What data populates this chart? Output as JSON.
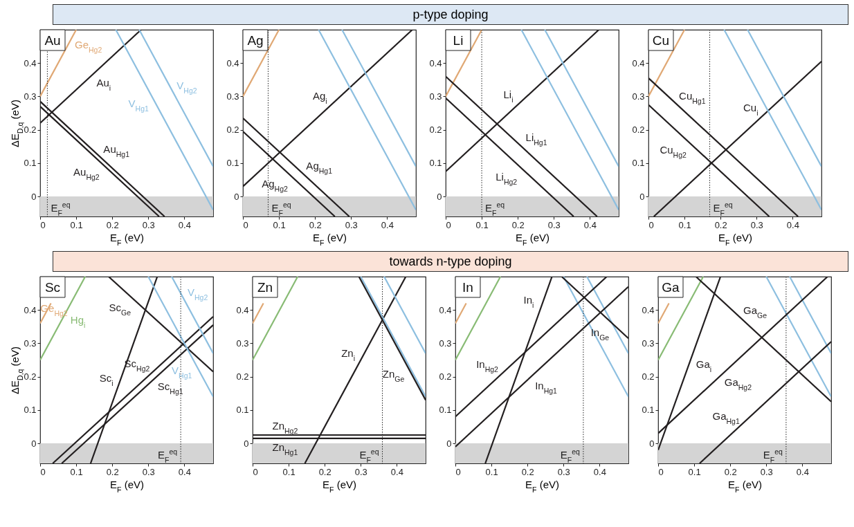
{
  "chart_data": [
    {
      "type": "other",
      "title": "p-type doping",
      "color": "#dde8f4"
    },
    {
      "type": "line",
      "title": "Au",
      "xlabel": "E$_{F}$ (eV)",
      "ylabel": "ΔE$_{D,q}$ (eV)",
      "xlim": [
        0,
        0.48
      ],
      "ylim": [
        -0.06,
        0.5
      ],
      "xticks": [
        0,
        0.1,
        0.2,
        0.3,
        0.4
      ],
      "yticks": [
        0,
        0.1,
        0.2,
        0.3,
        0.4
      ],
      "grid": false,
      "series": [
        {
          "color": "#e0a874",
          "x": [
            0,
            0.1
          ],
          "values": [
            0.3,
            0.5
          ]
        },
        {
          "color": "#231f20",
          "x": [
            0,
            0.28
          ],
          "values": [
            0.22,
            0.5
          ]
        },
        {
          "color": "#231f20",
          "x": [
            0,
            0.345
          ],
          "values": [
            0.285,
            -0.06
          ]
        },
        {
          "color": "#231f20",
          "x": [
            0,
            0.33
          ],
          "values": [
            0.27,
            -0.06
          ]
        },
        {
          "color": "#8dbfe0",
          "x": [
            0.21,
            0.48
          ],
          "values": [
            0.5,
            -0.04
          ]
        },
        {
          "color": "#8dbfe0",
          "x": [
            0.275,
            0.48
          ],
          "values": [
            0.5,
            0.09
          ]
        }
      ],
      "bands": [
        {
          "axis": "y",
          "from": -0.06,
          "to": 0,
          "color": "#d4d4d4"
        }
      ],
      "ref_lines": [
        {
          "axis": "x",
          "value": 0.02,
          "label": "E$_{F}$$^{eq}$",
          "line_style": "dotted"
        }
      ],
      "annotations": [
        {
          "text": "Ge$_{Hg2}$",
          "x": 0.09,
          "y": 0.48
        },
        {
          "text": "Au$_{i}$",
          "x": 0.15,
          "y": 0.37
        },
        {
          "text": "Au$_{Hg1}$",
          "x": 0.18,
          "y": 0.105
        },
        {
          "text": "Au$_{Hg2}$",
          "x": 0.16,
          "y": 0.11
        },
        {
          "text": "V$_{Hg2}$",
          "x": 0.37,
          "y": 0.31
        },
        {
          "text": "V$_{Hg1}$",
          "x": 0.31,
          "y": 0.3
        }
      ]
    },
    {
      "type": "line",
      "title": "Ag",
      "xlabel": "E$_{F}$ (eV)",
      "xlim": [
        0,
        0.48
      ],
      "ylim": [
        -0.06,
        0.5
      ],
      "xticks": [
        0,
        0.1,
        0.2,
        0.3,
        0.4
      ],
      "yticks": [
        0,
        0.1,
        0.2,
        0.3,
        0.4
      ],
      "grid": false,
      "series": [
        {
          "color": "#e0a874",
          "x": [
            0,
            0.1
          ],
          "values": [
            0.3,
            0.5
          ]
        },
        {
          "color": "#231f20",
          "x": [
            0,
            0.47
          ],
          "values": [
            0.03,
            0.5
          ]
        },
        {
          "color": "#231f20",
          "x": [
            0,
            0.295
          ],
          "values": [
            0.235,
            -0.06
          ]
        },
        {
          "color": "#231f20",
          "x": [
            0,
            0.255
          ],
          "values": [
            0.195,
            -0.06
          ]
        },
        {
          "color": "#8dbfe0",
          "x": [
            0.21,
            0.48
          ],
          "values": [
            0.5,
            -0.04
          ]
        },
        {
          "color": "#8dbfe0",
          "x": [
            0.275,
            0.48
          ],
          "values": [
            0.5,
            0.09
          ]
        }
      ],
      "bands": [
        {
          "axis": "y",
          "from": -0.06,
          "to": 0,
          "color": "#d4d4d4"
        }
      ],
      "ref_lines": [
        {
          "axis": "x",
          "value": 0.07,
          "label": "E$_{F}$$^{eq}$",
          "line_style": "dotted"
        }
      ],
      "annotations": [
        {
          "text": "Ag$_{i}$",
          "x": 0.24,
          "y": 0.27
        },
        {
          "text": "Ag$_{Hg1}$",
          "x": 0.18,
          "y": 0.055
        },
        {
          "text": "Ag$_{Hg2}$",
          "x": 0.12,
          "y": 0.075
        }
      ]
    },
    {
      "type": "line",
      "title": "Li",
      "xlabel": "E$_{F}$ (eV)",
      "xlim": [
        0,
        0.48
      ],
      "ylim": [
        -0.06,
        0.5
      ],
      "xticks": [
        0,
        0.1,
        0.2,
        0.3,
        0.4
      ],
      "yticks": [
        0,
        0.1,
        0.2,
        0.3,
        0.4
      ],
      "grid": false,
      "series": [
        {
          "color": "#e0a874",
          "x": [
            0,
            0.1
          ],
          "values": [
            0.3,
            0.5
          ]
        },
        {
          "color": "#231f20",
          "x": [
            0,
            0.425
          ],
          "values": [
            0.075,
            0.5
          ]
        },
        {
          "color": "#231f20",
          "x": [
            0,
            0.42
          ],
          "values": [
            0.36,
            -0.06
          ]
        },
        {
          "color": "#231f20",
          "x": [
            0,
            0.355
          ],
          "values": [
            0.295,
            -0.06
          ]
        },
        {
          "color": "#8dbfe0",
          "x": [
            0.21,
            0.48
          ],
          "values": [
            0.5,
            -0.04
          ]
        },
        {
          "color": "#8dbfe0",
          "x": [
            0.275,
            0.48
          ],
          "values": [
            0.5,
            0.09
          ]
        }
      ],
      "bands": [
        {
          "axis": "y",
          "from": -0.06,
          "to": 0,
          "color": "#d4d4d4"
        }
      ],
      "ref_lines": [
        {
          "axis": "x",
          "value": 0.1,
          "label": "E$_{F}$$^{eq}$",
          "line_style": "dotted"
        }
      ],
      "annotations": [
        {
          "text": "Li$_{i}$",
          "x": 0.2,
          "y": 0.275
        },
        {
          "text": "Li$_{Hg1}$",
          "x": 0.22,
          "y": 0.14
        },
        {
          "text": "Li$_{Hg2}$",
          "x": 0.2,
          "y": 0.095
        }
      ]
    },
    {
      "type": "line",
      "title": "Cu",
      "xlabel": "E$_{F}$ (eV)",
      "xlim": [
        0,
        0.48
      ],
      "ylim": [
        -0.06,
        0.5
      ],
      "xticks": [
        0,
        0.1,
        0.2,
        0.3,
        0.4
      ],
      "yticks": [
        0,
        0.1,
        0.2,
        0.3,
        0.4
      ],
      "grid": false,
      "series": [
        {
          "color": "#e0a874",
          "x": [
            0,
            0.1
          ],
          "values": [
            0.3,
            0.5
          ]
        },
        {
          "color": "#231f20",
          "x": [
            0,
            0.415
          ],
          "values": [
            0.355,
            -0.06
          ]
        },
        {
          "color": "#231f20",
          "x": [
            0,
            0.335
          ],
          "values": [
            0.275,
            -0.06
          ]
        },
        {
          "color": "#231f20",
          "x": [
            0.015,
            0.48
          ],
          "values": [
            -0.06,
            0.405
          ]
        },
        {
          "color": "#8dbfe0",
          "x": [
            0.21,
            0.48
          ],
          "values": [
            0.5,
            -0.04
          ]
        },
        {
          "color": "#8dbfe0",
          "x": [
            0.275,
            0.48
          ],
          "values": [
            0.5,
            0.09
          ]
        }
      ],
      "bands": [
        {
          "axis": "y",
          "from": -0.06,
          "to": 0,
          "color": "#d4d4d4"
        }
      ],
      "ref_lines": [
        {
          "axis": "x",
          "value": 0.17,
          "label": "E$_{F}$$^{eq}$",
          "line_style": "dotted"
        }
      ],
      "annotations": [
        {
          "text": "Cu$_{Hg1}$",
          "x": 0.09,
          "y": 0.265
        },
        {
          "text": "Cu$_{i}$",
          "x": 0.31,
          "y": 0.235
        },
        {
          "text": "Cu$_{Hg2}$",
          "x": 0.1,
          "y": 0.175
        }
      ]
    },
    {
      "type": "other",
      "title": "towards n-type doping",
      "color": "#fbe3d8"
    },
    {
      "type": "line",
      "title": "Sc",
      "xlabel": "E$_{F}$ (eV)",
      "ylabel": "ΔE$_{D,q}$ (eV)",
      "xlim": [
        0,
        0.48
      ],
      "ylim": [
        -0.06,
        0.5
      ],
      "xticks": [
        0,
        0.1,
        0.2,
        0.3,
        0.4
      ],
      "yticks": [
        0,
        0.1,
        0.2,
        0.3,
        0.4
      ],
      "grid": false,
      "series": [
        {
          "color": "#e0a874",
          "x": [
            0,
            0.03
          ],
          "values": [
            0.36,
            0.42
          ]
        },
        {
          "color": "#88bb74",
          "x": [
            0,
            0.125
          ],
          "values": [
            0.25,
            0.5
          ]
        },
        {
          "color": "#231f20",
          "x": [
            0.19,
            0.48
          ],
          "values": [
            0.5,
            0.215
          ]
        },
        {
          "color": "#231f20",
          "x": [
            0.14,
            0.325
          ],
          "values": [
            -0.06,
            0.5
          ]
        },
        {
          "color": "#231f20",
          "x": [
            0.035,
            0.48
          ],
          "values": [
            -0.06,
            0.38
          ]
        },
        {
          "color": "#231f20",
          "x": [
            0.06,
            0.48
          ],
          "values": [
            -0.06,
            0.355
          ]
        },
        {
          "color": "#8dbfe0",
          "x": [
            0.3,
            0.48
          ],
          "values": [
            0.5,
            0.14
          ]
        },
        {
          "color": "#8dbfe0",
          "x": [
            0.365,
            0.48
          ],
          "values": [
            0.5,
            0.27
          ]
        }
      ],
      "bands": [
        {
          "axis": "y",
          "from": -0.06,
          "to": 0,
          "color": "#d4d4d4"
        }
      ],
      "ref_lines": [
        {
          "axis": "x",
          "value": 0.39,
          "label": "E$_{F}$$^{eq}$",
          "line_style": "dotted"
        }
      ],
      "annotations": [
        {
          "text": "Ge$_{Hg2}$",
          "x": 0.01,
          "y": 0.38
        },
        {
          "text": "Sc$_{Ge}$",
          "x": 0.25,
          "y": 0.441
        },
        {
          "text": "Hg$_{i}$",
          "x": 0.07,
          "y": 0.39
        },
        {
          "text": "V$_{Hg2}$",
          "x": 0.4,
          "y": 0.43
        },
        {
          "text": "Sc$_{Hg2}$",
          "x": 0.3,
          "y": 0.202
        },
        {
          "text": "Sc$_{i}$",
          "x": 0.22,
          "y": 0.182
        },
        {
          "text": "V$_{Hg1}$",
          "x": 0.43,
          "y": 0.24
        },
        {
          "text": "Sc$_{Hg1}$",
          "x": 0.33,
          "y": 0.207
        }
      ]
    },
    {
      "type": "line",
      "title": "Zn",
      "xlabel": "E$_{F}$ (eV)",
      "xlim": [
        0,
        0.48
      ],
      "ylim": [
        -0.06,
        0.5
      ],
      "xticks": [
        0,
        0.1,
        0.2,
        0.3,
        0.4
      ],
      "yticks": [
        0,
        0.1,
        0.2,
        0.3,
        0.4
      ],
      "grid": false,
      "series": [
        {
          "color": "#e0a874",
          "x": [
            0,
            0.03
          ],
          "values": [
            0.36,
            0.42
          ]
        },
        {
          "color": "#88bb74",
          "x": [
            0,
            0.125
          ],
          "values": [
            0.25,
            0.5
          ]
        },
        {
          "color": "#231f20",
          "x": [
            0,
            0.48
          ],
          "values": [
            0.025,
            0.025
          ]
        },
        {
          "color": "#231f20",
          "x": [
            0,
            0.48
          ],
          "values": [
            0.015,
            0.015
          ]
        },
        {
          "color": "#231f20",
          "x": [
            0.145,
            0.425
          ],
          "values": [
            -0.06,
            0.5
          ]
        },
        {
          "color": "#8dbfe0",
          "x": [
            0.3,
            0.48
          ],
          "values": [
            0.5,
            0.14
          ]
        },
        {
          "color": "#8dbfe0",
          "x": [
            0.365,
            0.48
          ],
          "values": [
            0.5,
            0.27
          ]
        },
        {
          "color": "#231f20",
          "x": [
            0.295,
            0.48
          ],
          "values": [
            0.5,
            0.13
          ]
        }
      ],
      "bands": [
        {
          "axis": "y",
          "from": -0.06,
          "to": 0,
          "color": "#d4d4d4"
        }
      ],
      "ref_lines": [
        {
          "axis": "x",
          "value": 0.36,
          "label": "E$_{F}$$^{eq}$",
          "line_style": "dotted"
        }
      ],
      "annotations": [
        {
          "text": "Zn$_{i}$",
          "x": 0.3,
          "y": 0.25
        },
        {
          "text": "Zn$_{Ge}$",
          "x": 0.43,
          "y": 0.23
        },
        {
          "text": "Zn$_{Hg2}$",
          "x": 0.09,
          "y": 0.025
        },
        {
          "text": "Zn$_{Hg1}$",
          "x": 0.09,
          "y": 0.015
        }
      ]
    },
    {
      "type": "line",
      "title": "In",
      "xlabel": "E$_{F}$ (eV)",
      "xlim": [
        0,
        0.48
      ],
      "ylim": [
        -0.06,
        0.5
      ],
      "xticks": [
        0,
        0.1,
        0.2,
        0.3,
        0.4
      ],
      "yticks": [
        0,
        0.1,
        0.2,
        0.3,
        0.4
      ],
      "grid": false,
      "series": [
        {
          "color": "#e0a874",
          "x": [
            0,
            0.03
          ],
          "values": [
            0.36,
            0.42
          ]
        },
        {
          "color": "#88bb74",
          "x": [
            0,
            0.125
          ],
          "values": [
            0.25,
            0.5
          ]
        },
        {
          "color": "#8dbfe0",
          "x": [
            0.3,
            0.48
          ],
          "values": [
            0.5,
            0.14
          ]
        },
        {
          "color": "#8dbfe0",
          "x": [
            0.365,
            0.48
          ],
          "values": [
            0.5,
            0.27
          ]
        },
        {
          "color": "#231f20",
          "x": [
            0.083,
            0.268
          ],
          "values": [
            -0.06,
            0.5
          ]
        },
        {
          "color": "#231f20",
          "x": [
            0,
            0.42
          ],
          "values": [
            0.08,
            0.5
          ]
        },
        {
          "color": "#231f20",
          "x": [
            0,
            0.48
          ],
          "values": [
            -0.01,
            0.47
          ]
        },
        {
          "color": "#231f20",
          "x": [
            0.295,
            0.48
          ],
          "values": [
            0.5,
            0.315
          ]
        }
      ],
      "bands": [
        {
          "axis": "y",
          "from": -0.06,
          "to": 0,
          "color": "#d4d4d4"
        }
      ],
      "ref_lines": [
        {
          "axis": "x",
          "value": 0.355,
          "label": "E$_{F}$$^{eq}$",
          "line_style": "dotted"
        }
      ],
      "annotations": [
        {
          "text": "In$_{i}$",
          "x": 0.24,
          "y": 0.415
        },
        {
          "text": "In$_{Ge}$",
          "x": 0.43,
          "y": 0.365
        },
        {
          "text": "In$_{Hg2}$",
          "x": 0.12,
          "y": 0.2
        },
        {
          "text": "In$_{Hg1}$",
          "x": 0.22,
          "y": 0.21
        }
      ]
    },
    {
      "type": "line",
      "title": "Ga",
      "xlabel": "E$_{F}$ (eV)",
      "xlim": [
        0,
        0.48
      ],
      "ylim": [
        -0.06,
        0.5
      ],
      "xticks": [
        0,
        0.1,
        0.2,
        0.3,
        0.4
      ],
      "yticks": [
        0,
        0.1,
        0.2,
        0.3,
        0.4
      ],
      "grid": false,
      "series": [
        {
          "color": "#e0a874",
          "x": [
            0,
            0.03
          ],
          "values": [
            0.36,
            0.42
          ]
        },
        {
          "color": "#88bb74",
          "x": [
            0,
            0.125
          ],
          "values": [
            0.25,
            0.5
          ]
        },
        {
          "color": "#8dbfe0",
          "x": [
            0.3,
            0.48
          ],
          "values": [
            0.5,
            0.14
          ]
        },
        {
          "color": "#8dbfe0",
          "x": [
            0.365,
            0.48
          ],
          "values": [
            0.5,
            0.27
          ]
        },
        {
          "color": "#231f20",
          "x": [
            0,
            0.173
          ],
          "values": [
            -0.02,
            0.5
          ]
        },
        {
          "color": "#231f20",
          "x": [
            0.105,
            0.48
          ],
          "values": [
            0.5,
            0.125
          ]
        },
        {
          "color": "#231f20",
          "x": [
            0,
            0.47
          ],
          "values": [
            0.03,
            0.5
          ]
        },
        {
          "color": "#231f20",
          "x": [
            0.115,
            0.48
          ],
          "values": [
            -0.06,
            0.305
          ]
        }
      ],
      "bands": [
        {
          "axis": "y",
          "from": -0.06,
          "to": 0,
          "color": "#d4d4d4"
        }
      ],
      "ref_lines": [
        {
          "axis": "x",
          "value": 0.355,
          "label": "E$_{F}$$^{eq}$",
          "line_style": "dotted"
        }
      ],
      "annotations": [
        {
          "text": "Ga$_{Ge}$",
          "x": 0.24,
          "y": 0.365
        },
        {
          "text": "Ga$_{i}$",
          "x": 0.09,
          "y": 0.25
        },
        {
          "text": "Ga$_{Hg2}$",
          "x": 0.19,
          "y": 0.22
        },
        {
          "text": "Ga$_{Hg1}$",
          "x": 0.22,
          "y": 0.045
        }
      ]
    }
  ]
}
